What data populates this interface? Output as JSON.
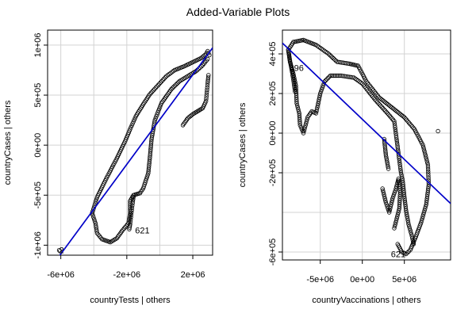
{
  "title": "Added-Variable Plots",
  "chart_data": [
    {
      "type": "scatter",
      "xlabel": "countryTests | others",
      "ylabel": "countryCases | others",
      "xlim": [
        -6800000,
        3200000
      ],
      "ylim": [
        -1100000,
        1150000
      ],
      "xticks": [
        {
          "value": -6000000,
          "label": "-6e+06"
        },
        {
          "value": -2000000,
          "label": "-2e+06"
        },
        {
          "value": 2000000,
          "label": "2e+06"
        }
      ],
      "xgrid": [
        -6000000,
        -4000000,
        -2000000,
        0,
        2000000
      ],
      "yticks": [
        {
          "value": -1000000,
          "label": "-1e+06"
        },
        {
          "value": -500000,
          "label": "-5e+05"
        },
        {
          "value": 0,
          "label": "0e+00"
        },
        {
          "value": 500000,
          "label": "5e+05"
        },
        {
          "value": 1000000,
          "label": "1e+06"
        }
      ],
      "grid": true,
      "fit_line": {
        "slope": 0.224,
        "intercept": 256000,
        "color": "#0000c8"
      },
      "labeled_points": [
        {
          "label": "2",
          "x": -6100000,
          "y": -1050000
        },
        {
          "label": "621",
          "x": -1500000,
          "y": -850000
        }
      ],
      "paths": [
        [
          [
            -4100000,
            -680000
          ],
          [
            -3800000,
            -520000
          ],
          [
            -3200000,
            -320000
          ],
          [
            -2600000,
            -130000
          ],
          [
            -2100000,
            40000
          ],
          [
            -1800000,
            160000
          ],
          [
            -1450000,
            290000
          ],
          [
            -1000000,
            410000
          ],
          [
            -600000,
            510000
          ],
          [
            -100000,
            600000
          ],
          [
            400000,
            690000
          ],
          [
            900000,
            750000
          ],
          [
            1500000,
            790000
          ],
          [
            2000000,
            830000
          ],
          [
            2500000,
            870000
          ],
          [
            2800000,
            910000
          ],
          [
            2900000,
            940000
          ],
          [
            3000000,
            900000
          ]
        ],
        [
          [
            -4100000,
            -680000
          ],
          [
            -3900000,
            -780000
          ],
          [
            -3800000,
            -880000
          ],
          [
            -3500000,
            -940000
          ],
          [
            -3000000,
            -970000
          ],
          [
            -2600000,
            -930000
          ],
          [
            -2300000,
            -860000
          ],
          [
            -1900000,
            -780000
          ],
          [
            -1800000,
            -680000
          ],
          [
            -1800000,
            -560000
          ],
          [
            -1600000,
            -500000
          ],
          [
            -1200000,
            -480000
          ],
          [
            -1000000,
            -430000
          ],
          [
            -700000,
            -280000
          ],
          [
            -600000,
            -120000
          ],
          [
            -500000,
            60000
          ],
          [
            -300000,
            250000
          ],
          [
            100000,
            420000
          ],
          [
            700000,
            560000
          ],
          [
            1200000,
            640000
          ],
          [
            1700000,
            690000
          ],
          [
            2200000,
            740000
          ],
          [
            2600000,
            800000
          ],
          [
            2900000,
            860000
          ]
        ],
        [
          [
            -1600000,
            -520000
          ],
          [
            -1650000,
            -580000
          ],
          [
            -1700000,
            -650000
          ],
          [
            -1750000,
            -720000
          ],
          [
            -1800000,
            -790000
          ],
          [
            -1850000,
            -840000
          ]
        ],
        [
          [
            1400000,
            200000
          ],
          [
            1700000,
            270000
          ],
          [
            2000000,
            310000
          ],
          [
            2300000,
            340000
          ],
          [
            2600000,
            370000
          ],
          [
            2800000,
            440000
          ],
          [
            2850000,
            530000
          ],
          [
            2900000,
            620000
          ],
          [
            2950000,
            700000
          ]
        ],
        [
          [
            -6100000,
            -1050000
          ],
          [
            -6050000,
            -1060000
          ]
        ]
      ]
    },
    {
      "type": "scatter",
      "xlabel": "countryVaccinations | others",
      "ylabel": "countryCases | others",
      "xlim": [
        -9500000,
        10500000
      ],
      "ylim": [
        -640000,
        520000
      ],
      "xticks": [
        {
          "value": -5000000,
          "label": "-5e+06"
        },
        {
          "value": 0,
          "label": "0e+00"
        },
        {
          "value": 5000000,
          "label": "5e+06"
        }
      ],
      "xgrid": [
        -5000000,
        0,
        5000000
      ],
      "yticks": [
        {
          "value": 400000,
          "label": "4e+05"
        },
        {
          "value": 200000,
          "label": "2e+05"
        },
        {
          "value": 0,
          "label": "0e+00"
        },
        {
          "value": -200000,
          "label": "-2e+05"
        },
        {
          "value": -600000,
          "label": "-6e+05"
        }
      ],
      "ygrid": [
        400000,
        200000,
        0,
        -200000,
        -400000,
        -600000
      ],
      "grid": true,
      "fit_line": {
        "slope": -0.0405,
        "intercept": 70000,
        "color": "#0000c8"
      },
      "labeled_points": [
        {
          "label": "396",
          "x": -8700000,
          "y": 330000
        },
        {
          "label": "621",
          "x": 3400000,
          "y": -610000
        }
      ],
      "paths": [
        [
          [
            -8800000,
            420000
          ],
          [
            -8200000,
            460000
          ],
          [
            -7000000,
            470000
          ],
          [
            -5500000,
            445000
          ],
          [
            -4000000,
            400000
          ],
          [
            -3000000,
            360000
          ],
          [
            -1500000,
            350000
          ],
          [
            -500000,
            340000
          ],
          [
            500000,
            260000
          ],
          [
            2000000,
            180000
          ],
          [
            3500000,
            130000
          ],
          [
            5000000,
            80000
          ],
          [
            6200000,
            20000
          ],
          [
            7200000,
            -60000
          ],
          [
            7800000,
            -160000
          ],
          [
            7900000,
            -260000
          ],
          [
            7600000,
            -360000
          ],
          [
            7000000,
            -450000
          ],
          [
            6300000,
            -530000
          ],
          [
            5700000,
            -590000
          ],
          [
            5200000,
            -610000
          ],
          [
            4700000,
            -600000
          ],
          [
            4200000,
            -560000
          ]
        ],
        [
          [
            -8800000,
            420000
          ],
          [
            -8600000,
            360000
          ],
          [
            -8200000,
            300000
          ],
          [
            -7900000,
            240000
          ],
          [
            -7800000,
            150000
          ],
          [
            -7500000,
            100000
          ],
          [
            -7400000,
            40000
          ],
          [
            -7000000,
            0
          ],
          [
            -6500000,
            80000
          ],
          [
            -6000000,
            110000
          ],
          [
            -5500000,
            100000
          ],
          [
            -5000000,
            200000
          ],
          [
            -4500000,
            260000
          ],
          [
            -3800000,
            290000
          ],
          [
            -2500000,
            290000
          ],
          [
            -1000000,
            280000
          ],
          [
            0,
            250000
          ],
          [
            1500000,
            170000
          ],
          [
            3000000,
            100000
          ],
          [
            3800000,
            60000
          ],
          [
            4600000,
            -200000
          ],
          [
            4800000,
            -240000
          ],
          [
            5000000,
            -320000
          ],
          [
            5200000,
            -390000
          ],
          [
            5500000,
            -460000
          ],
          [
            5900000,
            -520000
          ],
          [
            6100000,
            -560000
          ]
        ],
        [
          [
            -8800000,
            420000
          ],
          [
            -8600000,
            365000
          ],
          [
            -8400000,
            320000
          ],
          [
            -8200000,
            270000
          ],
          [
            -8000000,
            210000
          ]
        ],
        [
          [
            2400000,
            -280000
          ],
          [
            2800000,
            -350000
          ],
          [
            3200000,
            -400000
          ],
          [
            3600000,
            -330000
          ],
          [
            4000000,
            -280000
          ],
          [
            4300000,
            -230000
          ],
          [
            4500000,
            -300000
          ],
          [
            4400000,
            -380000
          ],
          [
            4100000,
            -430000
          ],
          [
            3800000,
            -480000
          ]
        ],
        [
          [
            2600000,
            -30000
          ],
          [
            2800000,
            -110000
          ],
          [
            3100000,
            -180000
          ]
        ],
        [
          [
            9000000,
            10000
          ]
        ]
      ]
    }
  ]
}
